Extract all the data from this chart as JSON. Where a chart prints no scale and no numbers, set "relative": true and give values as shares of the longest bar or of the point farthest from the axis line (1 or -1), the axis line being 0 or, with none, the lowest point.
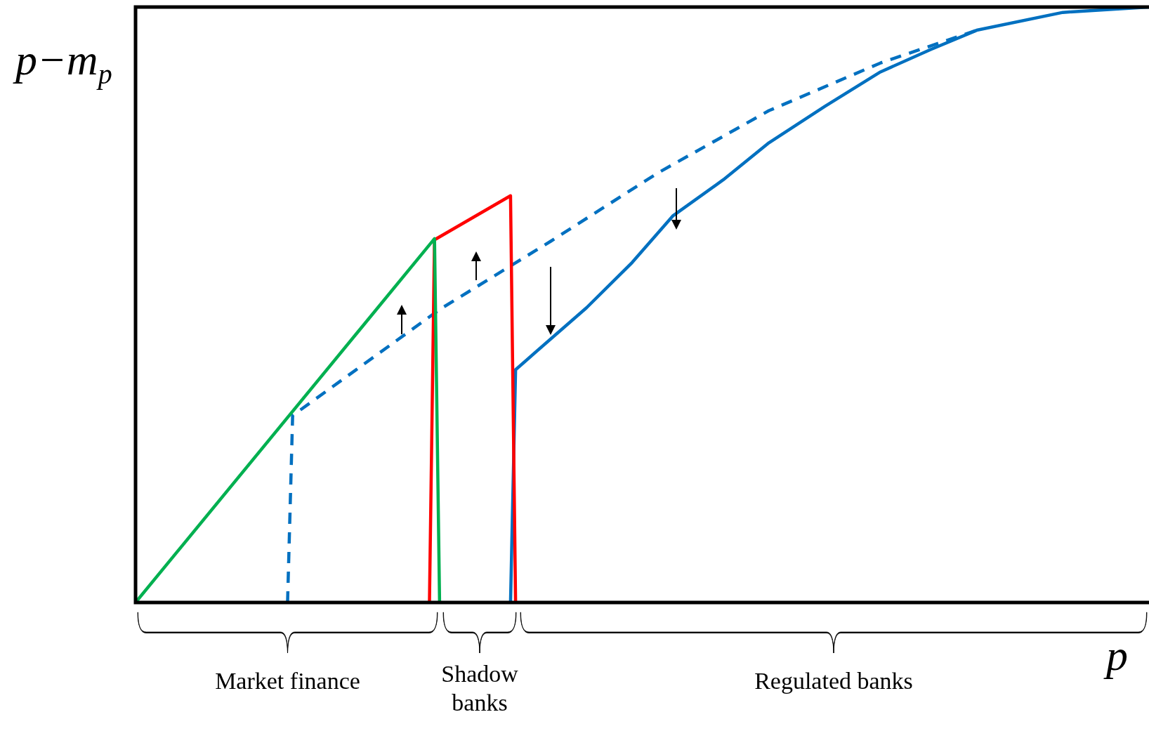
{
  "chart_data": {
    "type": "line",
    "relative": true,
    "xlabel": "p",
    "ylabel": "p−m$_{p}$",
    "legend": false,
    "marker": "none",
    "categories": [
      null,
      null,
      null,
      null,
      null,
      null,
      null,
      null,
      null,
      null,
      null,
      null,
      null,
      null,
      null,
      null,
      null,
      null,
      null,
      null,
      null,
      null,
      null,
      null,
      null,
      null,
      null,
      null,
      null,
      null,
      null,
      null,
      null,
      null,
      null,
      null,
      null,
      null,
      null,
      null,
      null,
      null,
      null,
      null,
      null,
      null,
      null,
      null,
      null,
      null,
      null,
      null,
      null,
      null,
      null,
      null,
      null,
      null,
      null,
      null,
      null,
      null,
      null,
      null,
      null,
      null,
      null,
      null,
      null,
      null,
      null,
      null,
      null,
      null,
      null,
      null,
      null,
      null,
      null,
      null,
      null,
      null,
      null,
      null,
      null,
      null,
      null,
      null,
      null,
      null,
      null,
      null,
      null,
      null,
      null,
      null,
      null,
      null,
      null,
      null,
      null,
      null,
      null,
      null,
      null,
      null,
      null,
      null,
      null,
      null,
      null,
      null,
      null,
      null,
      null,
      null,
      null,
      null,
      null,
      null,
      null,
      null,
      null,
      null,
      null,
      null,
      null,
      null,
      null,
      null,
      null,
      null,
      null,
      null,
      null,
      null,
      null,
      null,
      null,
      null,
      null,
      null,
      null,
      null,
      null,
      null,
      null,
      null,
      null,
      null,
      null,
      null,
      null,
      null,
      null,
      null,
      null,
      null,
      null,
      null,
      null,
      null,
      null,
      null,
      null,
      null,
      null,
      null,
      null,
      null,
      null,
      null,
      null,
      null,
      null,
      null,
      null,
      null,
      null,
      null,
      null,
      null,
      null,
      null,
      null,
      null,
      null,
      null,
      null,
      null,
      null,
      null,
      null,
      null,
      null,
      null,
      null,
      null,
      null,
      null,
      null
    ],
    "series": [
      {
        "color": "#00b050",
        "values": [
          0,
          null,
          null,
          null,
          null,
          null,
          null,
          null,
          null,
          null,
          null,
          null,
          null,
          null,
          null,
          null,
          null,
          null,
          null,
          null,
          null,
          null,
          null,
          null,
          null,
          null,
          null,
          null,
          null,
          null,
          null,
          null,
          null,
          null,
          null,
          null,
          null,
          null,
          null,
          null,
          null,
          null,
          null,
          null,
          null,
          null,
          null,
          null,
          null,
          null,
          null,
          null,
          null,
          null,
          null,
          null,
          null,
          null,
          null,
          0.611,
          0,
          null,
          null,
          null,
          null,
          null,
          null,
          null,
          null,
          null,
          null,
          null,
          null,
          null,
          null,
          null,
          null,
          null,
          null,
          null,
          null,
          null,
          null,
          null,
          null,
          null,
          null,
          null,
          null,
          null,
          null,
          null,
          null,
          null,
          null,
          null,
          null,
          null,
          null,
          null,
          null,
          null,
          null,
          null,
          null,
          null,
          null,
          null,
          null,
          null,
          null,
          null,
          null,
          null,
          null,
          null,
          null,
          null,
          null,
          null,
          null,
          null,
          null,
          null,
          null,
          null,
          null,
          null,
          null,
          null,
          null,
          null,
          null,
          null,
          null,
          null,
          null,
          null,
          null,
          null,
          null,
          null,
          null,
          null,
          null,
          null,
          null,
          null,
          null,
          null,
          null,
          null,
          null,
          null,
          null,
          null,
          null,
          null,
          null,
          null,
          null,
          null,
          null,
          null,
          null,
          null,
          null,
          null,
          null,
          null,
          null,
          null,
          null,
          null,
          null,
          null,
          null,
          null,
          null,
          null,
          null,
          null,
          null,
          null,
          null,
          null,
          null,
          null,
          null,
          null,
          null,
          null,
          null,
          null,
          null,
          null,
          null,
          null,
          null,
          null,
          null
        ]
      },
      {
        "color": "#ff0000",
        "values": [
          null,
          null,
          null,
          null,
          null,
          null,
          null,
          null,
          null,
          null,
          null,
          null,
          null,
          null,
          null,
          null,
          null,
          null,
          null,
          null,
          null,
          null,
          null,
          null,
          null,
          null,
          null,
          null,
          null,
          null,
          null,
          null,
          null,
          null,
          null,
          null,
          null,
          null,
          null,
          null,
          null,
          null,
          null,
          null,
          null,
          null,
          null,
          null,
          null,
          null,
          null,
          null,
          null,
          null,
          null,
          null,
          null,
          null,
          0,
          0.609,
          null,
          null,
          null,
          null,
          null,
          null,
          null,
          null,
          null,
          null,
          null,
          null,
          null,
          null,
          0.683,
          0,
          null,
          null,
          null,
          null,
          null,
          null,
          null,
          null,
          null,
          null,
          null,
          null,
          null,
          null,
          null,
          null,
          null,
          null,
          null,
          null,
          null,
          null,
          null,
          null,
          null,
          null,
          null,
          null,
          null,
          null,
          null,
          null,
          null,
          null,
          null,
          null,
          null,
          null,
          null,
          null,
          null,
          null,
          null,
          null,
          null,
          null,
          null,
          null,
          null,
          null,
          null,
          null,
          null,
          null,
          null,
          null,
          null,
          null,
          null,
          null,
          null,
          null,
          null,
          null,
          null,
          null,
          null,
          null,
          null,
          null,
          null,
          null,
          null,
          null,
          null,
          null,
          null,
          null,
          null,
          null,
          null,
          null,
          null,
          null,
          null,
          null,
          null,
          null,
          null,
          null,
          null,
          null,
          null,
          null,
          null,
          null,
          null,
          null,
          null,
          null,
          null,
          null,
          null,
          null,
          null,
          null,
          null,
          null,
          null,
          null,
          null,
          null,
          null,
          null,
          null,
          null,
          null,
          null,
          null,
          null,
          null,
          null,
          null,
          null,
          null
        ]
      },
      {
        "color": "#0070c0",
        "values": [
          null,
          null,
          null,
          null,
          null,
          null,
          null,
          null,
          null,
          null,
          null,
          null,
          null,
          null,
          null,
          null,
          null,
          null,
          null,
          null,
          null,
          null,
          null,
          null,
          null,
          null,
          null,
          null,
          null,
          null,
          null,
          null,
          null,
          null,
          null,
          null,
          null,
          null,
          null,
          null,
          null,
          null,
          null,
          null,
          null,
          null,
          null,
          null,
          null,
          null,
          null,
          null,
          null,
          null,
          null,
          null,
          null,
          null,
          null,
          null,
          null,
          null,
          null,
          null,
          null,
          null,
          null,
          null,
          null,
          null,
          null,
          null,
          null,
          null,
          0,
          0.391,
          null,
          null,
          null,
          null,
          null,
          null,
          null,
          null,
          null,
          null,
          null,
          null,
          null,
          0.495,
          null,
          null,
          null,
          null,
          null,
          null,
          null,
          null,
          0.571,
          null,
          null,
          null,
          null,
          null,
          null,
          null,
          0.649,
          null,
          null,
          null,
          null,
          null,
          null,
          null,
          null,
          null,
          0.71,
          null,
          null,
          null,
          null,
          null,
          null,
          null,
          null,
          0.772,
          null,
          null,
          null,
          null,
          null,
          null,
          null,
          null,
          null,
          null,
          0.833,
          null,
          null,
          null,
          null,
          null,
          null,
          null,
          null,
          null,
          null,
          0.891,
          null,
          null,
          null,
          null,
          null,
          null,
          null,
          null,
          null,
          0.929,
          null,
          null,
          null,
          null,
          null,
          null,
          null,
          null,
          0.961,
          null,
          null,
          null,
          null,
          null,
          null,
          null,
          null,
          null,
          null,
          null,
          null,
          null,
          null,
          null,
          null,
          0.991,
          null,
          null,
          null,
          null,
          null,
          null,
          null,
          null,
          null,
          null,
          null,
          null,
          null,
          null,
          null,
          null,
          1
        ]
      },
      {
        "color": "#0070c0",
        "line_style": "dashed",
        "values": [
          null,
          null,
          null,
          null,
          null,
          null,
          null,
          null,
          null,
          null,
          null,
          null,
          null,
          null,
          null,
          null,
          null,
          null,
          null,
          null,
          null,
          null,
          null,
          null,
          null,
          null,
          null,
          null,
          null,
          null,
          0,
          0.314,
          null,
          null,
          null,
          null,
          null,
          null,
          null,
          null,
          null,
          null,
          null,
          null,
          null,
          null,
          null,
          null,
          null,
          null,
          null,
          null,
          null,
          null,
          null,
          null,
          null,
          null,
          null,
          null,
          0.492,
          null,
          null,
          null,
          null,
          null,
          null,
          null,
          null,
          null,
          null,
          null,
          null,
          null,
          null,
          null,
          null,
          null,
          null,
          null,
          null,
          null,
          0.607,
          null,
          null,
          null,
          null,
          null,
          null,
          null,
          null,
          null,
          null,
          null,
          null,
          null,
          null,
          null,
          null,
          null,
          null,
          null,
          null,
          0.721,
          null,
          null,
          null,
          null,
          null,
          null,
          null,
          null,
          null,
          null,
          null,
          null,
          null,
          null,
          null,
          null,
          null,
          null,
          null,
          null,
          null,
          0.826,
          null,
          null,
          null,
          null,
          null,
          null,
          null,
          null,
          null,
          null,
          null,
          null,
          null,
          null,
          null,
          null,
          null,
          null,
          null,
          null,
          null,
          0.906,
          null,
          null,
          null,
          null,
          null,
          null,
          null,
          null,
          null,
          null,
          null,
          null,
          null,
          null,
          null,
          null,
          null,
          null,
          0.961,
          null,
          null,
          null,
          null,
          null,
          null,
          null,
          null,
          null,
          null,
          null,
          null,
          null,
          null,
          null,
          null,
          null,
          null,
          null,
          null,
          null,
          null,
          null,
          null,
          null,
          null,
          null,
          null,
          null,
          null,
          null,
          null,
          null,
          null
        ]
      }
    ],
    "annotations": [
      "Market finance",
      "Shadow banks",
      "Regulated banks"
    ]
  }
}
